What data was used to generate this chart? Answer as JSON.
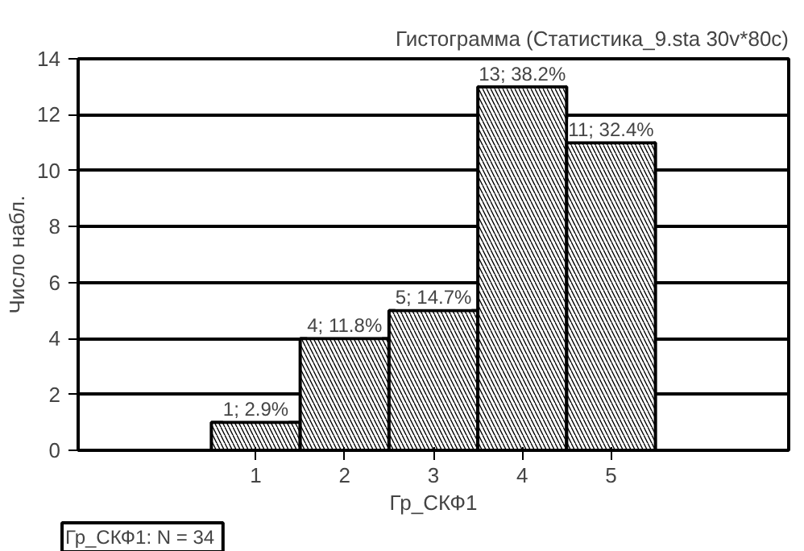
{
  "chart_data": {
    "type": "histogram",
    "title": "Гистограмма (Статистика_9.sta 30v*80c)",
    "xlabel": "Гр_СКФ1",
    "ylabel": "Число набл.",
    "bins": [
      0.5,
      1.5,
      2.5,
      3.5,
      4.5,
      5.5
    ],
    "values": [
      1,
      4,
      5,
      13,
      11
    ],
    "value_labels": [
      "1; 2.9%",
      "4; 11.8%",
      "5; 14.7%",
      "13; 38.2%",
      "11; 32.4%"
    ],
    "color": "#000000",
    "xlim": [
      -1,
      7
    ],
    "xticks": [
      1,
      2,
      3,
      4,
      5
    ],
    "ylim": [
      0,
      14
    ],
    "yticks": [
      0,
      2,
      4,
      6,
      8,
      10,
      12,
      14
    ],
    "grid": "y",
    "annotations": [
      "Гр_СКФ1:  N = 34"
    ]
  }
}
